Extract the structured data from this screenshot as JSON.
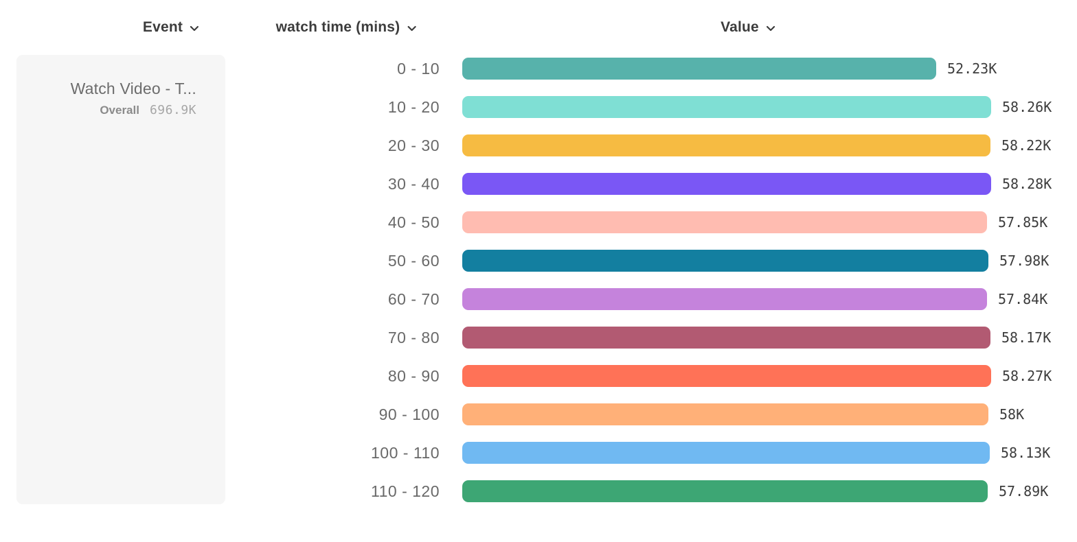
{
  "header": {
    "columns": [
      {
        "id": "event",
        "label": "Event"
      },
      {
        "id": "breakdown",
        "label": "watch time (mins)"
      },
      {
        "id": "value",
        "label": "Value"
      }
    ],
    "chevron_icon": "chevron-down-icon"
  },
  "legend": {
    "event_name": "Watch Video - T...",
    "overall_label": "Overall",
    "overall_value": "696.9K"
  },
  "chart_data": {
    "type": "bar",
    "orientation": "horizontal",
    "title": "",
    "xlabel": "Value",
    "ylabel": "watch time (mins)",
    "xlim": [
      0,
      58.28
    ],
    "grid": false,
    "categories": [
      "0 - 10",
      "10 - 20",
      "20 - 30",
      "30 - 40",
      "40 - 50",
      "50 - 60",
      "60 - 70",
      "70 - 80",
      "80 - 90",
      "90 - 100",
      "100 - 110",
      "110 - 120"
    ],
    "values": [
      52.23,
      58.26,
      58.22,
      58.28,
      57.85,
      57.98,
      57.84,
      58.17,
      58.27,
      58.0,
      58.13,
      57.89
    ],
    "unit": "K",
    "value_labels": [
      "52.23K",
      "58.26K",
      "58.22K",
      "58.28K",
      "57.85K",
      "57.98K",
      "57.84K",
      "58.17K",
      "58.27K",
      "58K",
      "58.13K",
      "57.89K"
    ],
    "colors": [
      "#57b2ab",
      "#7fdfd4",
      "#f6bb42",
      "#7a57f5",
      "#ffbcb1",
      "#137fa0",
      "#c583dc",
      "#b25a72",
      "#ff7257",
      "#ffb078",
      "#70b9f2",
      "#3da674"
    ]
  }
}
